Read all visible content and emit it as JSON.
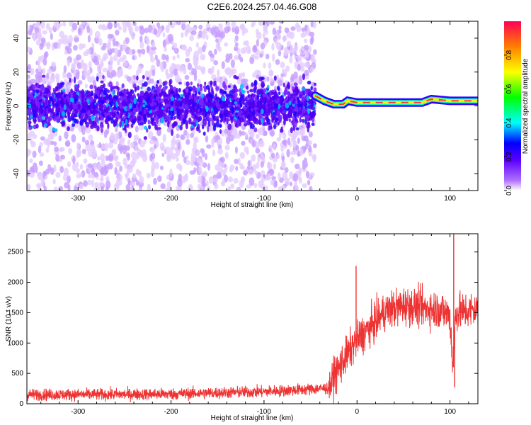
{
  "page": {
    "title": "C2E6.2024.257.04.46.G08"
  },
  "chart_data": [
    {
      "type": "heatmap",
      "xlabel": "Height of straight line (km)",
      "ylabel": "Frequency (Hz)",
      "xlim": [
        -355,
        130
      ],
      "ylim": [
        -50,
        50
      ],
      "xticks": [
        "-300",
        "-200",
        "-100",
        "0",
        "100"
      ],
      "yticks": [
        "-40",
        "-20",
        "0",
        "20",
        "40"
      ],
      "colorbar": {
        "label": "Normalized spectral amplitude",
        "range": [
          0,
          1
        ],
        "ticks": [
          "0.0",
          "0.2",
          "0.4",
          "0.6",
          "0.8"
        ]
      },
      "description_values": {
        "noisy_region_x": [
          -355,
          -45
        ],
        "noise_band_hz": [
          -15,
          15
        ],
        "tone_path": [
          {
            "x": -45,
            "y": 6
          },
          {
            "x": -35,
            "y": 3
          },
          {
            "x": -25,
            "y": 1
          },
          {
            "x": -15,
            "y": 1
          },
          {
            "x": -10,
            "y": 3
          },
          {
            "x": 0,
            "y": 2
          },
          {
            "x": 40,
            "y": 2
          },
          {
            "x": 70,
            "y": 2
          },
          {
            "x": 80,
            "y": 4
          },
          {
            "x": 100,
            "y": 3
          },
          {
            "x": 130,
            "y": 3
          }
        ]
      }
    },
    {
      "type": "line",
      "xlabel": "Height of straight line (km)",
      "ylabel": "SNR (10 * v/v)",
      "xlim": [
        -355,
        130
      ],
      "ylim": [
        0,
        2800
      ],
      "xticks": [
        "-300",
        "-200",
        "-100",
        "0",
        "100"
      ],
      "yticks": [
        "0",
        "500",
        "1000",
        "1500",
        "2000",
        "2500"
      ],
      "series": [
        {
          "color": "#ee3333",
          "points": [
            {
              "x": -355,
              "y": 150
            },
            {
              "x": -300,
              "y": 150
            },
            {
              "x": -200,
              "y": 160
            },
            {
              "x": -100,
              "y": 200
            },
            {
              "x": -50,
              "y": 240
            },
            {
              "x": -30,
              "y": 260
            },
            {
              "x": -25,
              "y": 450
            },
            {
              "x": -15,
              "y": 700
            },
            {
              "x": -5,
              "y": 950
            },
            {
              "x": 0,
              "y": 1050
            },
            {
              "x": 10,
              "y": 1200
            },
            {
              "x": 20,
              "y": 1350
            },
            {
              "x": 30,
              "y": 1520
            },
            {
              "x": 50,
              "y": 1620
            },
            {
              "x": 70,
              "y": 1580
            },
            {
              "x": 90,
              "y": 1550
            },
            {
              "x": 100,
              "y": 1450
            },
            {
              "x": 103,
              "y": 600
            },
            {
              "x": 106,
              "y": 1500
            },
            {
              "x": 130,
              "y": 1550
            }
          ],
          "spikes": [
            {
              "x": -1,
              "y": 2270
            },
            {
              "x": 104,
              "y": 2800
            },
            {
              "x": 105,
              "y": 270
            }
          ]
        }
      ]
    }
  ]
}
